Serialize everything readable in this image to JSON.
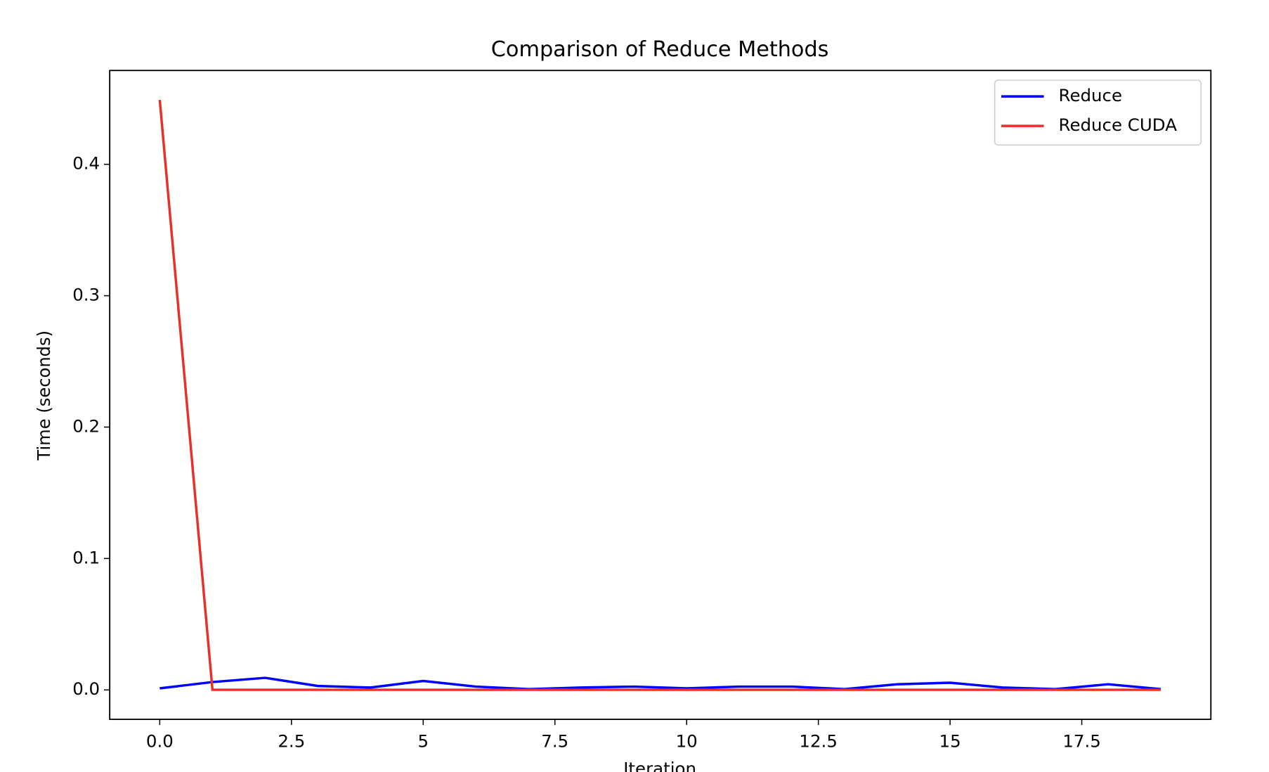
{
  "chart_data": {
    "type": "line",
    "title": "Comparison of Reduce Methods",
    "x_label": "Iteration",
    "y_label": "Time (seconds)",
    "x": [
      0,
      1,
      2,
      3,
      4,
      5,
      6,
      7,
      8,
      9,
      10,
      11,
      12,
      13,
      14,
      15,
      16,
      17,
      18,
      19
    ],
    "series": [
      {
        "name": "Reduce",
        "color": "#0000ff",
        "values": [
          0.0012,
          0.006,
          0.0092,
          0.003,
          0.0018,
          0.0068,
          0.0025,
          0.0006,
          0.0018,
          0.0025,
          0.0012,
          0.0025,
          0.0025,
          0.0006,
          0.0043,
          0.0055,
          0.0018,
          0.0006,
          0.0043,
          0.0006
        ]
      },
      {
        "name": "Reduce CUDA",
        "color": "#e8302a",
        "values": [
          0.449,
          0.0001,
          0.0001,
          0.0001,
          0.0001,
          0.0001,
          0.0001,
          0.0001,
          0.0001,
          0.0001,
          0.0001,
          0.0001,
          0.0001,
          0.0001,
          0.0001,
          0.0001,
          0.0001,
          0.0001,
          0.0001,
          0.0001
        ]
      }
    ],
    "xlim": [
      -0.95,
      19.95
    ],
    "xticks": [
      {
        "value": 0,
        "label": "0.0"
      },
      2.5,
      5,
      7.5,
      10,
      12.5,
      15,
      17.5
    ],
    "ylim": [
      -0.0224,
      0.4714
    ],
    "yticks": [
      {
        "value": 0,
        "label": "0.0"
      },
      0.1,
      0.2,
      0.3,
      0.4
    ],
    "legend": "upper right",
    "grid": false
  }
}
